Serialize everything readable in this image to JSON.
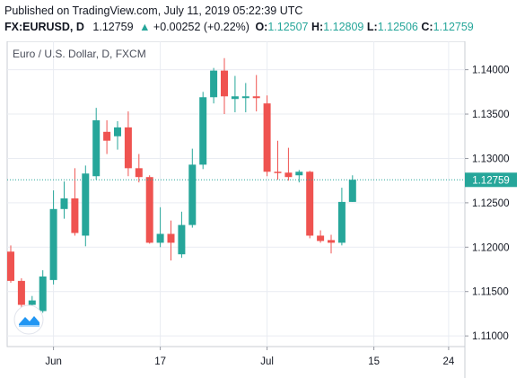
{
  "header": {
    "published_line": "Published on TradingView.com, July 11, 2019 05:22:39 UTC",
    "symbol": "FX:EURUSD, D",
    "last": "1.12759",
    "change_arrow": "▲",
    "change": "+0.00252 (+0.22%)",
    "o_label": "O:",
    "o_value": "1.12507",
    "h_label": "H:",
    "h_value": "1.12809",
    "l_label": "L:",
    "l_value": "1.12506",
    "c_label": "C:",
    "c_value": "1.12759"
  },
  "legend_title": "Euro / U.S. Dollar, D, FXCM",
  "colors": {
    "up": "#26a69a",
    "down": "#ef5350",
    "grid": "#e9ecf2",
    "last_price_tag": "#26a69a",
    "logo": "#2196f3"
  },
  "logo_icon": "tradingview-logo-icon",
  "chart_data": {
    "type": "candlestick",
    "title": "Euro / U.S. Dollar, D, FXCM",
    "ylim": [
      1.1088,
      1.1432
    ],
    "yticks": [
      1.11,
      1.115,
      1.12,
      1.125,
      1.13,
      1.135,
      1.14
    ],
    "ytick_labels": [
      "1.11000",
      "1.11500",
      "1.12000",
      "1.12500",
      "1.13000",
      "1.13500",
      "1.14000"
    ],
    "xticks": [
      {
        "label": "Jun",
        "index": 4
      },
      {
        "label": "17",
        "index": 14
      },
      {
        "label": "Jul",
        "index": 24
      },
      {
        "label": "15",
        "index": 34
      },
      {
        "label": "24",
        "index": 41
      }
    ],
    "last_price": 1.12759,
    "last_price_label": "1.12759",
    "candles": [
      {
        "o": 1.1195,
        "h": 1.1202,
        "l": 1.116,
        "c": 1.1162
      },
      {
        "o": 1.1162,
        "h": 1.1165,
        "l": 1.1125,
        "c": 1.1135
      },
      {
        "o": 1.1135,
        "h": 1.1145,
        "l": 1.1123,
        "c": 1.114
      },
      {
        "o": 1.1128,
        "h": 1.1174,
        "l": 1.1126,
        "c": 1.1167
      },
      {
        "o": 1.1163,
        "h": 1.1264,
        "l": 1.1158,
        "c": 1.1243
      },
      {
        "o": 1.1243,
        "h": 1.1274,
        "l": 1.1232,
        "c": 1.1255
      },
      {
        "o": 1.1255,
        "h": 1.1289,
        "l": 1.1213,
        "c": 1.1216
      },
      {
        "o": 1.1213,
        "h": 1.1292,
        "l": 1.1201,
        "c": 1.1283
      },
      {
        "o": 1.128,
        "h": 1.1357,
        "l": 1.1276,
        "c": 1.1343
      },
      {
        "o": 1.133,
        "h": 1.1343,
        "l": 1.1305,
        "c": 1.132
      },
      {
        "o": 1.1325,
        "h": 1.1342,
        "l": 1.131,
        "c": 1.1335
      },
      {
        "o": 1.1335,
        "h": 1.1353,
        "l": 1.128,
        "c": 1.1289
      },
      {
        "o": 1.1289,
        "h": 1.1305,
        "l": 1.1273,
        "c": 1.1279
      },
      {
        "o": 1.1279,
        "h": 1.1281,
        "l": 1.1204,
        "c": 1.1205
      },
      {
        "o": 1.1205,
        "h": 1.1245,
        "l": 1.12,
        "c": 1.1215
      },
      {
        "o": 1.1215,
        "h": 1.123,
        "l": 1.1185,
        "c": 1.1205
      },
      {
        "o": 1.1192,
        "h": 1.124,
        "l": 1.1188,
        "c": 1.1225
      },
      {
        "o": 1.1225,
        "h": 1.1311,
        "l": 1.1222,
        "c": 1.1293
      },
      {
        "o": 1.1293,
        "h": 1.1375,
        "l": 1.1288,
        "c": 1.1369
      },
      {
        "o": 1.1369,
        "h": 1.1402,
        "l": 1.1362,
        "c": 1.1399
      },
      {
        "o": 1.1399,
        "h": 1.1413,
        "l": 1.135,
        "c": 1.137
      },
      {
        "o": 1.1367,
        "h": 1.1393,
        "l": 1.1352,
        "c": 1.137
      },
      {
        "o": 1.1368,
        "h": 1.1385,
        "l": 1.1352,
        "c": 1.137
      },
      {
        "o": 1.137,
        "h": 1.1394,
        "l": 1.1353,
        "c": 1.1368
      },
      {
        "o": 1.1362,
        "h": 1.1371,
        "l": 1.128,
        "c": 1.1285
      },
      {
        "o": 1.1285,
        "h": 1.132,
        "l": 1.1276,
        "c": 1.1284
      },
      {
        "o": 1.1284,
        "h": 1.1312,
        "l": 1.1275,
        "c": 1.1279
      },
      {
        "o": 1.1281,
        "h": 1.1287,
        "l": 1.1273,
        "c": 1.1285
      },
      {
        "o": 1.1285,
        "h": 1.1286,
        "l": 1.121,
        "c": 1.1213
      },
      {
        "o": 1.1213,
        "h": 1.1219,
        "l": 1.1205,
        "c": 1.1207
      },
      {
        "o": 1.1208,
        "h": 1.1214,
        "l": 1.1193,
        "c": 1.1205
      },
      {
        "o": 1.1205,
        "h": 1.1267,
        "l": 1.1202,
        "c": 1.1251
      },
      {
        "o": 1.1251,
        "h": 1.1281,
        "l": 1.1251,
        "c": 1.1276
      }
    ]
  }
}
